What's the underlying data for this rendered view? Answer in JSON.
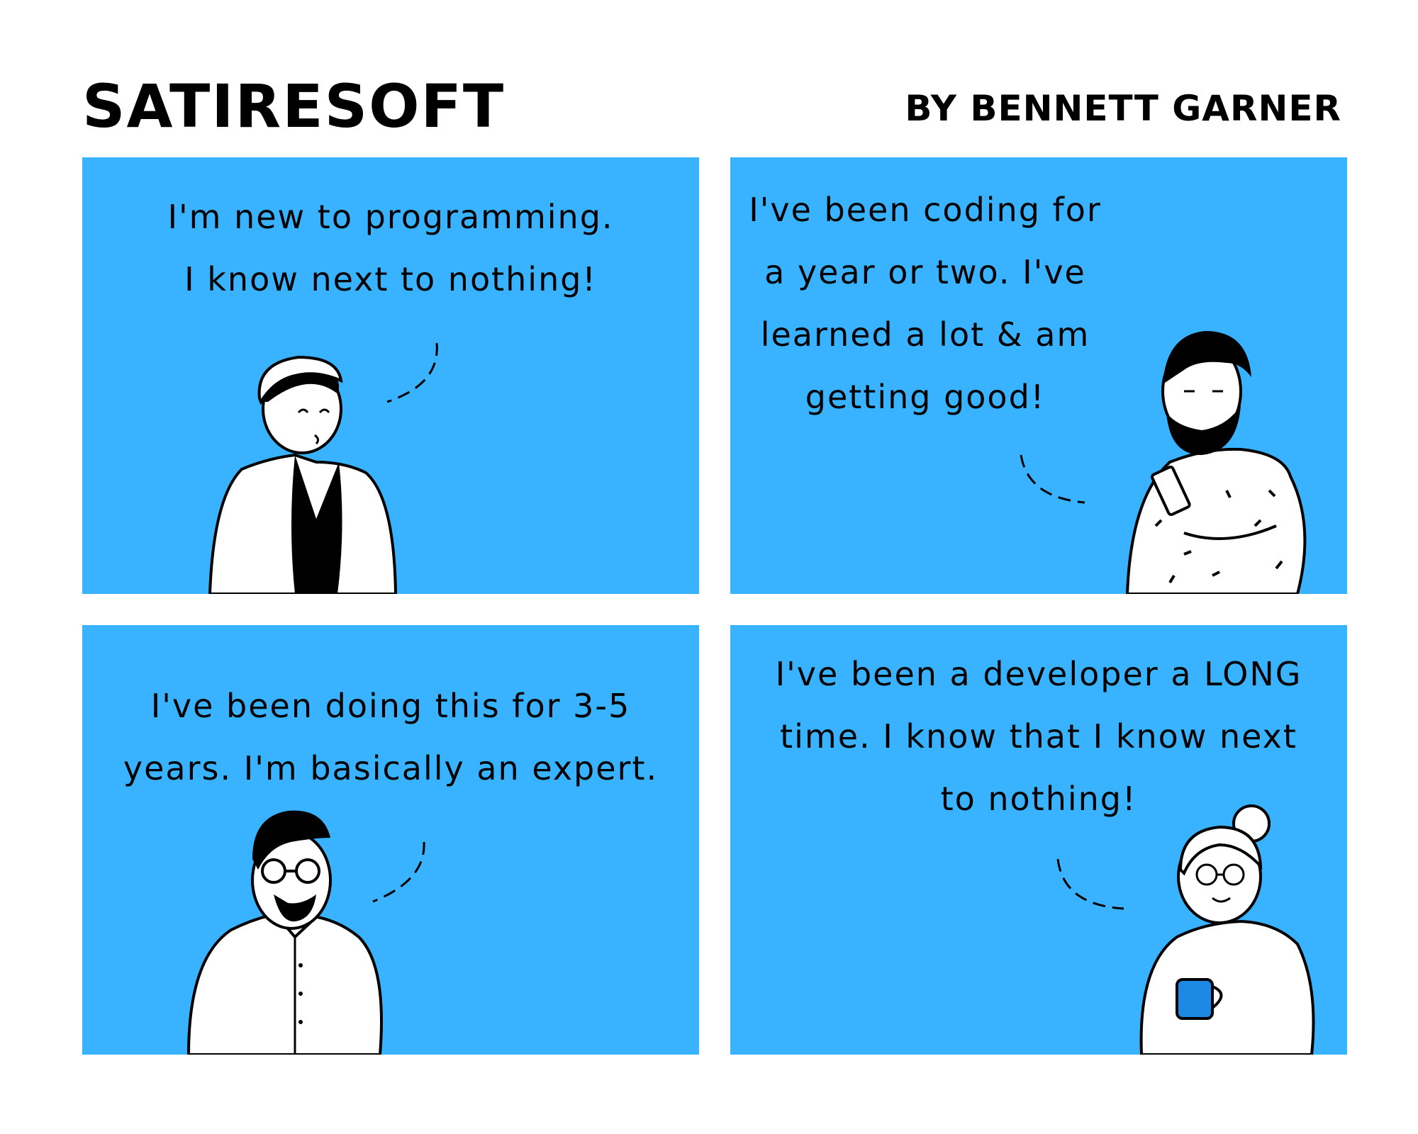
{
  "header": {
    "title": "SATIRESOFT",
    "byline": "BY BENNETT GARNER"
  },
  "panels": [
    {
      "lines": [
        "I'm new to programming.",
        "I know next to nothing!"
      ],
      "character": "beanie-guy-jacket"
    },
    {
      "lines": [
        "I've been coding for",
        "a year or two. I've",
        "learned a lot & am",
        "getting good!"
      ],
      "character": "bearded-man-with-phone"
    },
    {
      "lines": [
        "I've been doing this for 3-5",
        "years. I'm basically an expert."
      ],
      "character": "man-with-glasses-shirt"
    },
    {
      "lines": [
        "I've been a developer a LONG",
        "time. I know that I know next",
        "to nothing!"
      ],
      "character": "older-woman-with-mug"
    }
  ],
  "colors": {
    "panel": "#39b3ff",
    "ink": "#000000",
    "paper": "#ffffff"
  }
}
